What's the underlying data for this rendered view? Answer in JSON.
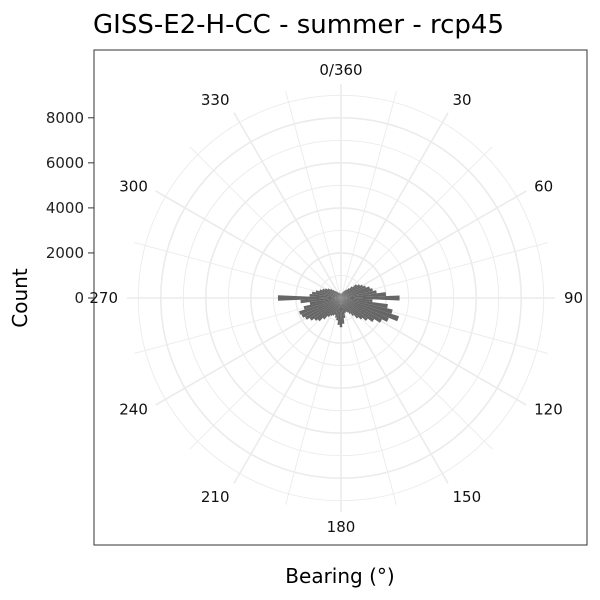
{
  "chart_data": {
    "type": "bar",
    "coord": "polar",
    "title": "GISS-E2-H-CC - summer - rcp45",
    "xlabel": "Bearing (°)",
    "ylabel": "Count",
    "y_ticks": [
      0,
      2000,
      4000,
      6000,
      8000
    ],
    "theta_ticks": [
      {
        "deg": 0,
        "label": "0/360"
      },
      {
        "deg": 30,
        "label": "30"
      },
      {
        "deg": 60,
        "label": "60"
      },
      {
        "deg": 90,
        "label": "90"
      },
      {
        "deg": 120,
        "label": "120"
      },
      {
        "deg": 150,
        "label": "150"
      },
      {
        "deg": 180,
        "label": "180"
      },
      {
        "deg": 210,
        "label": "210"
      },
      {
        "deg": 240,
        "label": "240"
      },
      {
        "deg": 270,
        "label": "270"
      },
      {
        "deg": 300,
        "label": "300"
      },
      {
        "deg": 330,
        "label": "330"
      }
    ],
    "bin_width_deg": 5,
    "x": [
      0,
      5,
      10,
      15,
      20,
      25,
      30,
      35,
      40,
      45,
      50,
      55,
      60,
      65,
      70,
      75,
      80,
      85,
      90,
      95,
      100,
      105,
      110,
      115,
      120,
      125,
      130,
      135,
      140,
      145,
      150,
      155,
      160,
      165,
      170,
      175,
      180,
      185,
      190,
      195,
      200,
      205,
      210,
      215,
      220,
      225,
      230,
      235,
      240,
      245,
      250,
      255,
      260,
      265,
      270,
      275,
      280,
      285,
      290,
      295,
      300,
      305,
      310,
      315,
      320,
      325,
      330,
      335,
      340,
      345,
      350,
      355
    ],
    "values": [
      200,
      180,
      220,
      250,
      300,
      350,
      400,
      450,
      550,
      700,
      900,
      1000,
      1100,
      1200,
      1350,
      1450,
      1600,
      2000,
      2600,
      1400,
      2100,
      2350,
      2700,
      2300,
      2050,
      1750,
      1500,
      1300,
      1150,
      950,
      800,
      700,
      650,
      700,
      900,
      1150,
      1300,
      1200,
      1000,
      900,
      800,
      850,
      900,
      1000,
      1200,
      1400,
      1500,
      1650,
      1800,
      1900,
      1950,
      1700,
      1400,
      1800,
      2800,
      1400,
      1300,
      1150,
      1000,
      900,
      800,
      700,
      600,
      500,
      400,
      350,
      300,
      250,
      250,
      220,
      200,
      200
    ],
    "value_max": 9500,
    "grid": true,
    "legend": "none",
    "bar_color": "#666666",
    "grid_color": "#ebebeb",
    "panel_border_color": "#333333"
  }
}
